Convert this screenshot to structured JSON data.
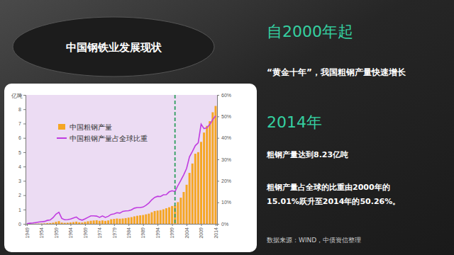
{
  "chart_data": {
    "type": "bar",
    "title": "中国钢铁业发展现状",
    "ylabel": "亿吨",
    "x": [
      1949,
      1950,
      1951,
      1952,
      1953,
      1954,
      1955,
      1956,
      1957,
      1958,
      1959,
      1960,
      1961,
      1962,
      1963,
      1964,
      1965,
      1966,
      1967,
      1968,
      1969,
      1970,
      1971,
      1972,
      1973,
      1974,
      1975,
      1976,
      1977,
      1978,
      1979,
      1980,
      1981,
      1982,
      1983,
      1984,
      1985,
      1986,
      1987,
      1988,
      1989,
      1990,
      1991,
      1992,
      1993,
      1994,
      1995,
      1996,
      1997,
      1998,
      1999,
      2000,
      2001,
      2002,
      2003,
      2004,
      2005,
      2006,
      2007,
      2008,
      2009,
      2010,
      2011,
      2012,
      2013,
      2014
    ],
    "xlim": [
      1948.5,
      2014.5
    ],
    "xticks": [
      1949,
      1954,
      1959,
      1964,
      1969,
      1974,
      1979,
      1984,
      1989,
      1994,
      1999,
      2004,
      2009,
      2014
    ],
    "ylim": [
      0,
      9
    ],
    "yticks": [
      0,
      1,
      2,
      3,
      4,
      5,
      6,
      7,
      8,
      9
    ],
    "y2lim": [
      0,
      60
    ],
    "y2ticks": [
      {
        "value": 0,
        "label": "0%"
      },
      {
        "value": 10,
        "label": "10%"
      },
      {
        "value": 20,
        "label": "20%"
      },
      {
        "value": 30,
        "label": "30%"
      },
      {
        "value": 40,
        "label": "40%"
      },
      {
        "value": 50,
        "label": "50%"
      },
      {
        "value": 60,
        "label": "60%"
      }
    ],
    "grid": false,
    "legend": "upper left",
    "series": [
      {
        "name": "中国粗钢产量",
        "type": "bar",
        "color": "#f5a623",
        "values": [
          0.002,
          0.006,
          0.009,
          0.014,
          0.018,
          0.022,
          0.029,
          0.045,
          0.054,
          0.08,
          0.139,
          0.187,
          0.087,
          0.067,
          0.076,
          0.096,
          0.122,
          0.153,
          0.103,
          0.09,
          0.133,
          0.178,
          0.213,
          0.234,
          0.252,
          0.211,
          0.239,
          0.205,
          0.237,
          0.318,
          0.345,
          0.371,
          0.356,
          0.372,
          0.4,
          0.435,
          0.468,
          0.522,
          0.563,
          0.594,
          0.616,
          0.664,
          0.71,
          0.809,
          0.896,
          0.926,
          0.954,
          1.012,
          1.089,
          1.156,
          1.243,
          1.285,
          1.516,
          1.824,
          2.223,
          2.728,
          3.558,
          4.21,
          4.893,
          5.003,
          5.722,
          6.372,
          6.839,
          7.165,
          7.79,
          8.23
        ]
      },
      {
        "name": "中国粗钢产量占全球比重",
        "type": "line",
        "color": "#c03ce0",
        "axis": "y2",
        "values": [
          0.1,
          0.3,
          0.4,
          0.6,
          0.8,
          1.0,
          1.1,
          1.6,
          1.8,
          2.9,
          4.5,
          5.4,
          2.5,
          1.9,
          2.0,
          2.2,
          2.7,
          3.2,
          2.1,
          1.7,
          2.3,
          3.0,
          3.7,
          3.7,
          3.6,
          3.0,
          3.7,
          3.0,
          3.5,
          4.4,
          4.6,
          5.2,
          5.0,
          5.8,
          6.0,
          6.1,
          6.5,
          7.3,
          7.6,
          7.6,
          7.8,
          8.6,
          9.7,
          11.2,
          12.3,
          12.8,
          12.7,
          13.5,
          13.6,
          14.9,
          15.4,
          15.01,
          17.8,
          20.2,
          22.8,
          25.8,
          31.2,
          33.7,
          36.4,
          37.7,
          46.4,
          44.3,
          44.7,
          46.3,
          48.5,
          50.26
        ]
      }
    ],
    "reference_line": {
      "x": 2000,
      "color": "#2e9e5e",
      "line_style": "dashed"
    },
    "annotations": [
      {
        "text": "自2000年起",
        "color": "#35d0a0"
      },
      {
        "text": "“黄金十年”，我国粗钢产量快速增长",
        "color": "#ffffff"
      },
      {
        "text": "2014年",
        "color": "#35d0a0"
      },
      {
        "text": "粗钢产量达到8.23亿吨",
        "color": "#ffffff"
      },
      {
        "text": "粗钢产量占全球的比重由2000年的",
        "color": "#ffffff"
      },
      {
        "text": "15.01%跃升至2014年的50.26%。",
        "color": "#ffffff"
      }
    ],
    "source": "数据来源：WIND，中债资信整理"
  }
}
